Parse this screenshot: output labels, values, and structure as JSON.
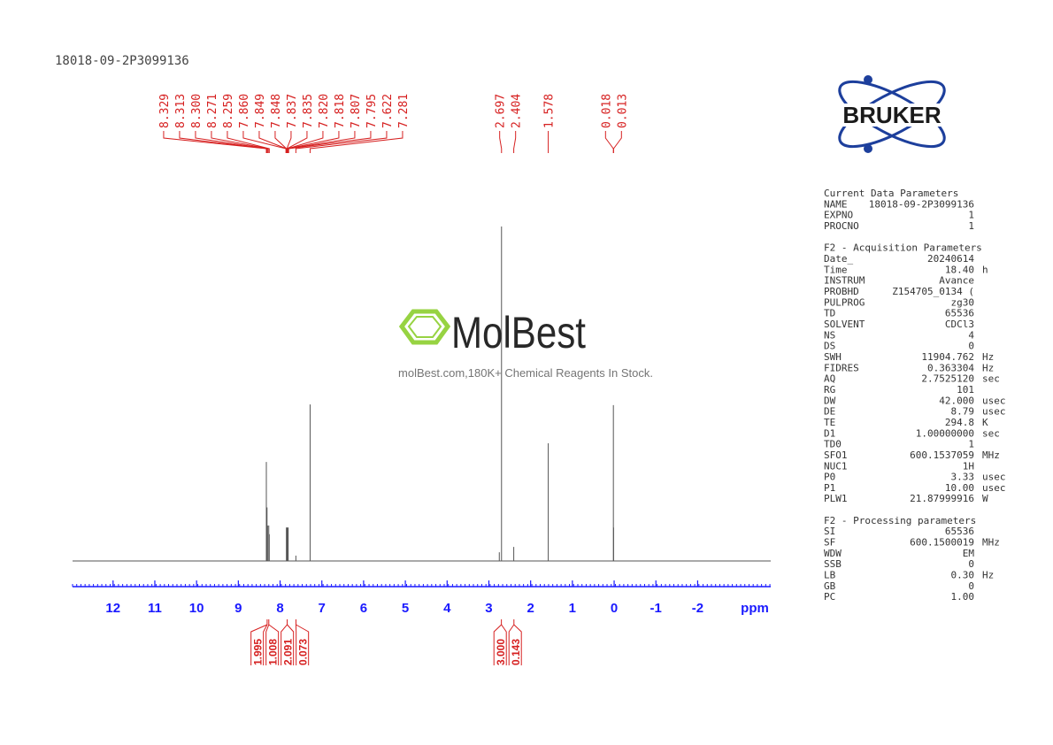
{
  "sample_id": "18018-09-2P3099136",
  "logo": "BRUKER",
  "watermark": {
    "brand": "MolBest",
    "tagline": "molBest.com,180K+ Chemical Reagents In Stock."
  },
  "chart_data": {
    "type": "spectrum",
    "x_label": "ppm",
    "xlim": [
      12.97,
      -3.75
    ],
    "xticks": [
      12,
      11,
      10,
      9,
      8,
      7,
      6,
      5,
      4,
      3,
      2,
      1,
      0,
      -1,
      -2
    ],
    "ylim": [
      0,
      100
    ],
    "color": "#555555",
    "label_color": "#d62020",
    "axis_color": "#1a1aff",
    "peaks": {
      "x": [
        8.329,
        8.313,
        8.3,
        8.271,
        8.259,
        7.849,
        7.837,
        7.82,
        7.807,
        7.622,
        7.281,
        2.75,
        2.697,
        2.404,
        1.578,
        0.018,
        0.013
      ],
      "values": [
        29.6,
        16,
        10.6,
        10.6,
        8,
        10,
        10,
        10,
        10,
        1.6,
        46.8,
        2.6,
        100,
        4.2,
        35.2,
        46.6,
        10
      ]
    },
    "peak_picks": [
      8.329,
      8.313,
      {
        "value": 8.3,
        "label": "8.300"
      },
      8.271,
      8.259,
      {
        "value": 7.86,
        "label": "7.860"
      },
      7.849,
      7.848,
      7.837,
      7.835,
      {
        "value": 7.82,
        "label": "7.820"
      },
      7.818,
      7.807,
      7.795,
      7.622,
      7.281,
      2.697,
      2.404,
      1.578,
      0.018,
      0.013
    ],
    "integrals": {
      "x": [
        8.31,
        8.27,
        7.83,
        7.62,
        2.7,
        2.4
      ],
      "values": [
        1.995,
        1.008,
        2.091,
        0.073,
        3,
        0.143
      ],
      "value_labels": [
        "1.995",
        "1.008",
        "2.091",
        "0.073",
        "3.000",
        "0.143"
      ]
    }
  },
  "parameters": [
    {
      "title": "Current Data Parameters",
      "rows": [
        [
          "NAME",
          "18018-09-2P3099136"
        ],
        [
          "EXPNO",
          "1"
        ],
        [
          "PROCNO",
          "1"
        ]
      ]
    },
    {
      "title": "F2 - Acquisition Parameters",
      "rows": [
        [
          "Date_",
          "20240614"
        ],
        [
          "Time",
          "18.40",
          "h"
        ],
        [
          "INSTRUM",
          "Avance"
        ],
        [
          "PROBHD",
          "Z154705_0134 ("
        ],
        [
          "PULPROG",
          "zg30"
        ],
        [
          "TD",
          "65536"
        ],
        [
          "SOLVENT",
          "CDCl3"
        ],
        [
          "NS",
          "4"
        ],
        [
          "DS",
          "0"
        ],
        [
          "SWH",
          "11904.762",
          "Hz"
        ],
        [
          "FIDRES",
          "0.363304",
          "Hz"
        ],
        [
          "AQ",
          "2.7525120",
          "sec"
        ],
        [
          "RG",
          "101"
        ],
        [
          "DW",
          "42.000",
          "usec"
        ],
        [
          "DE",
          "8.79",
          "usec"
        ],
        [
          "TE",
          "294.8",
          "K"
        ],
        [
          "D1",
          "1.00000000",
          "sec"
        ],
        [
          "TD0",
          "1"
        ],
        [
          "SFO1",
          "600.1537059",
          "MHz"
        ],
        [
          "NUC1",
          "1H"
        ],
        [
          "P0",
          "3.33",
          "usec"
        ],
        [
          "P1",
          "10.00",
          "usec"
        ],
        [
          "PLW1",
          "21.87999916",
          "W"
        ]
      ]
    },
    {
      "title": "F2 - Processing parameters",
      "rows": [
        [
          "SI",
          "65536"
        ],
        [
          "SF",
          "600.1500019",
          "MHz"
        ],
        [
          "WDW",
          "EM"
        ],
        [
          "SSB",
          "0"
        ],
        [
          "LB",
          "0.30",
          "Hz"
        ],
        [
          "GB",
          "0"
        ],
        [
          "PC",
          "1.00"
        ]
      ]
    }
  ]
}
